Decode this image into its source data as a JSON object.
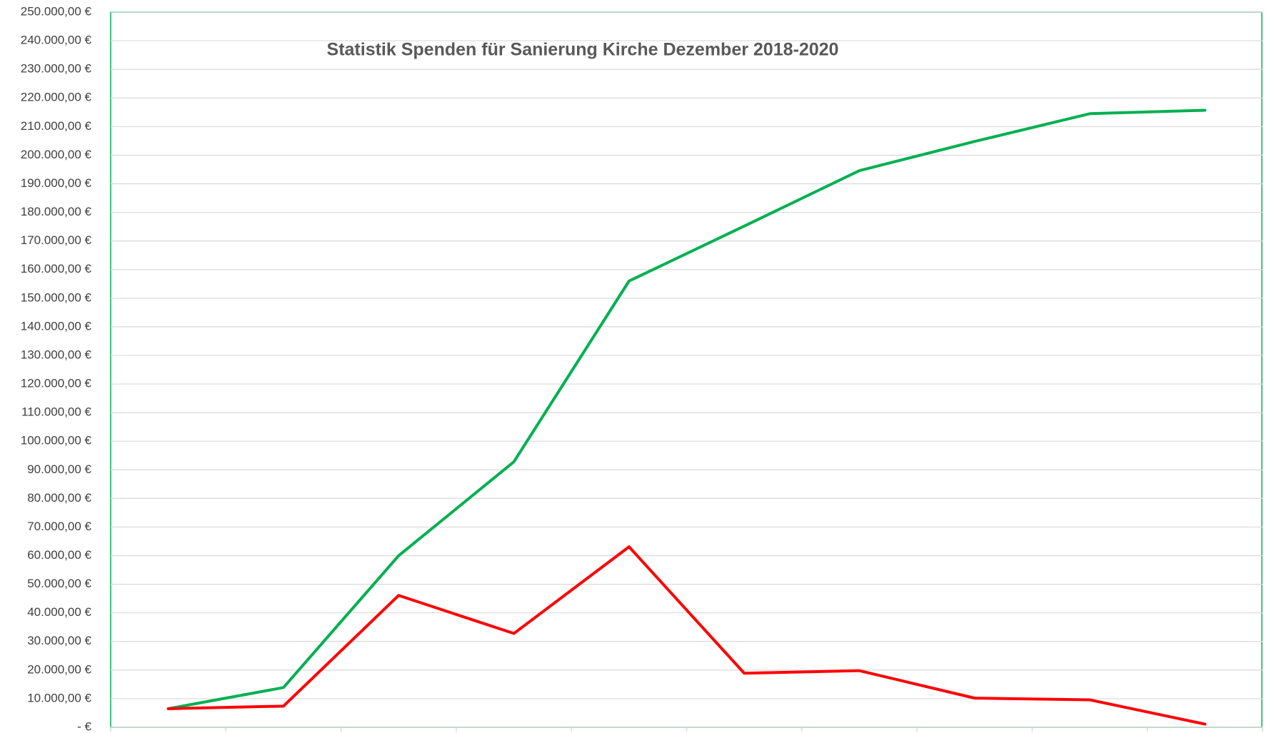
{
  "chart_data": {
    "type": "line",
    "title": "Statistik Spenden für Sanierung Kirche Dezember 2018-2020",
    "categories": [
      null,
      null,
      null,
      null,
      null,
      null,
      null,
      null,
      null,
      null
    ],
    "series": [
      {
        "color": "#00b050",
        "values": [
          6500,
          13900,
          60000,
          92800,
          156000,
          175200,
          194600,
          204800,
          214500,
          215700
        ]
      },
      {
        "color": "#ff0000",
        "values": [
          6500,
          7400,
          46100,
          32800,
          63100,
          18900,
          19800,
          10200,
          9600,
          1100
        ]
      }
    ],
    "ylim": [
      0,
      250000
    ],
    "yticks": [
      {
        "value": 0,
        "label": "-  €"
      },
      {
        "value": 10000,
        "label": "10.000,00 €"
      },
      {
        "value": 20000,
        "label": "20.000,00 €"
      },
      {
        "value": 30000,
        "label": "30.000,00 €"
      },
      {
        "value": 40000,
        "label": "40.000,00 €"
      },
      {
        "value": 50000,
        "label": "50.000,00 €"
      },
      {
        "value": 60000,
        "label": "60.000,00 €"
      },
      {
        "value": 70000,
        "label": "70.000,00 €"
      },
      {
        "value": 80000,
        "label": "80.000,00 €"
      },
      {
        "value": 90000,
        "label": "90.000,00 €"
      },
      {
        "value": 100000,
        "label": "100.000,00 €"
      },
      {
        "value": 110000,
        "label": "110.000,00 €"
      },
      {
        "value": 120000,
        "label": "120.000,00 €"
      },
      {
        "value": 130000,
        "label": "130.000,00 €"
      },
      {
        "value": 140000,
        "label": "140.000,00 €"
      },
      {
        "value": 150000,
        "label": "150.000,00 €"
      },
      {
        "value": 160000,
        "label": "160.000,00 €"
      },
      {
        "value": 170000,
        "label": "170.000,00 €"
      },
      {
        "value": 180000,
        "label": "180.000,00 €"
      },
      {
        "value": 190000,
        "label": "190.000,00 €"
      },
      {
        "value": 200000,
        "label": "200.000,00 €"
      },
      {
        "value": 210000,
        "label": "210.000,00 €"
      },
      {
        "value": 220000,
        "label": "220.000,00 €"
      },
      {
        "value": 230000,
        "label": "230.000,00 €"
      },
      {
        "value": 240000,
        "label": "240.000,00 €"
      },
      {
        "value": 250000,
        "label": "250.000,00 €"
      }
    ],
    "grid": true
  }
}
